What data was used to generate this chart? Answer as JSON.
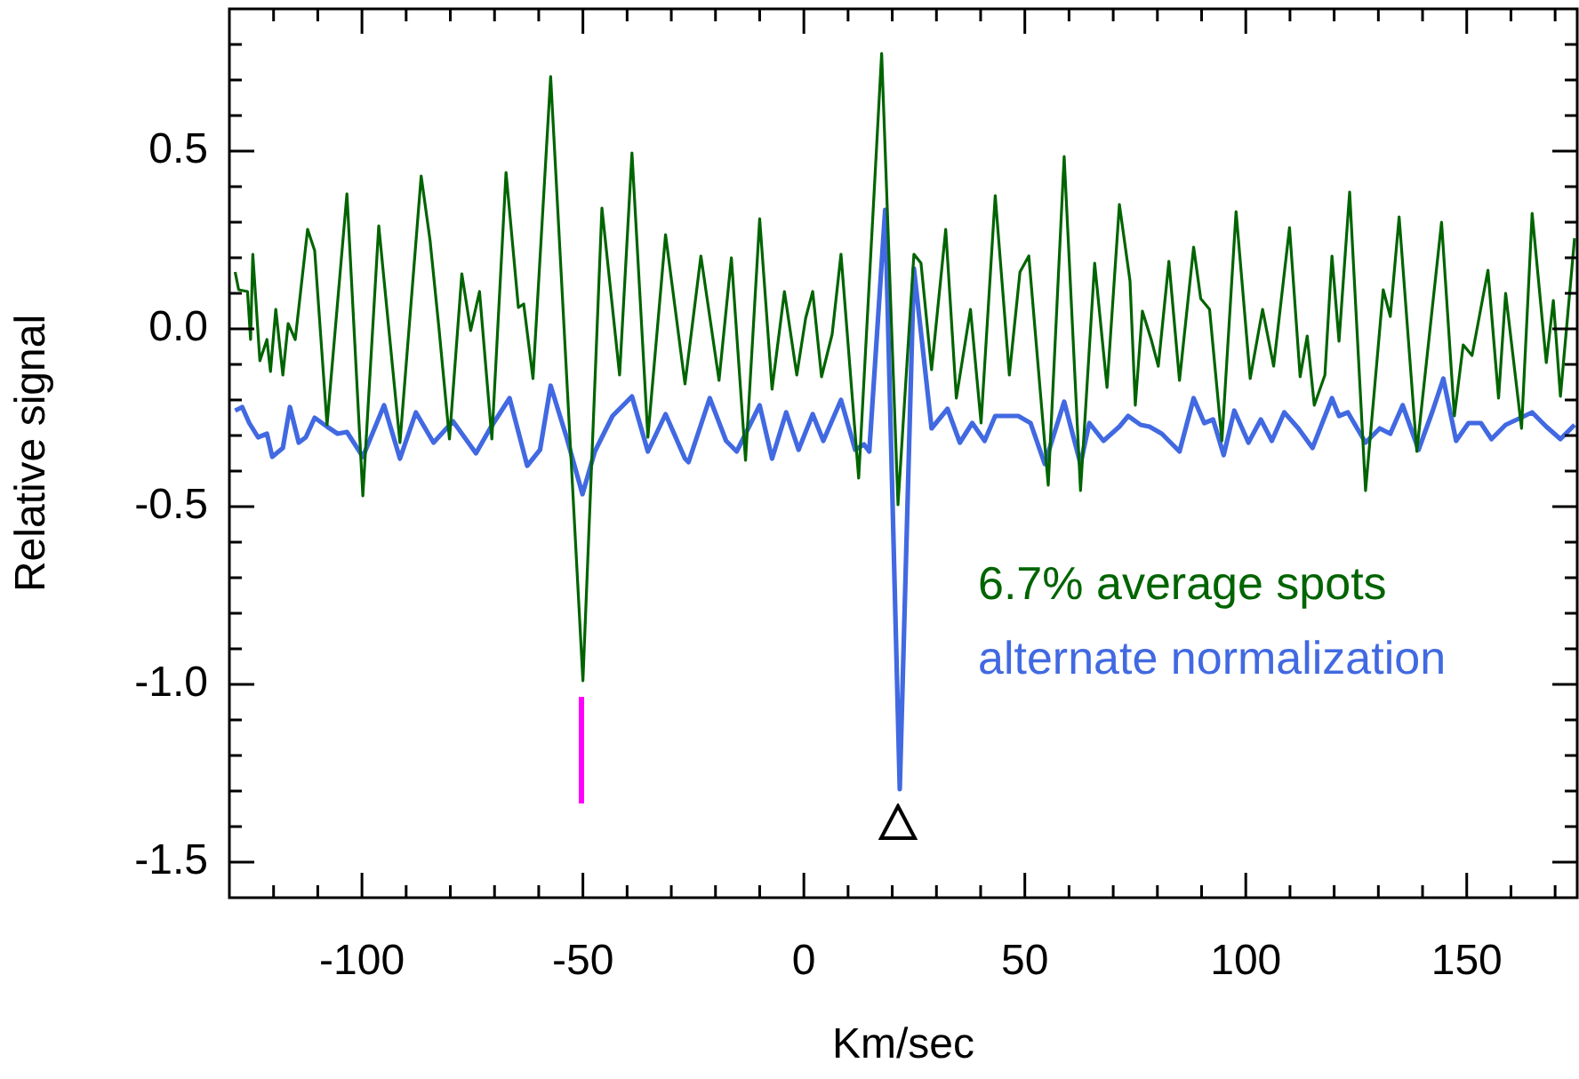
{
  "chart_data": {
    "type": "line",
    "xlabel": "Km/sec",
    "ylabel": "Relative signal",
    "xlim": [
      -130,
      175
    ],
    "ylim": [
      -1.6,
      0.9
    ],
    "xticks": [
      {
        "value": -120,
        "label": null
      },
      {
        "value": -110,
        "label": null
      },
      -100,
      {
        "value": -90,
        "label": null
      },
      {
        "value": -80,
        "label": null
      },
      {
        "value": -70,
        "label": null
      },
      {
        "value": -60,
        "label": null
      },
      -50,
      {
        "value": -40,
        "label": null
      },
      {
        "value": -30,
        "label": null
      },
      {
        "value": -20,
        "label": null
      },
      {
        "value": -10,
        "label": null
      },
      0,
      {
        "value": 10,
        "label": null
      },
      {
        "value": 20,
        "label": null
      },
      {
        "value": 30,
        "label": null
      },
      {
        "value": 40,
        "label": null
      },
      50,
      {
        "value": 60,
        "label": null
      },
      {
        "value": 70,
        "label": null
      },
      {
        "value": 80,
        "label": null
      },
      {
        "value": 90,
        "label": null
      },
      100,
      {
        "value": 110,
        "label": null
      },
      {
        "value": 120,
        "label": null
      },
      {
        "value": 130,
        "label": null
      },
      {
        "value": 140,
        "label": null
      },
      150,
      {
        "value": 160,
        "label": null
      },
      {
        "value": 170,
        "label": null
      }
    ],
    "yticks": [
      {
        "value": -1.5,
        "label": "-1.5"
      },
      {
        "value": -1.4,
        "label": null
      },
      {
        "value": -1.3,
        "label": null
      },
      {
        "value": -1.2,
        "label": null
      },
      {
        "value": -1.1,
        "label": null
      },
      {
        "value": -1.0,
        "label": "-1.0"
      },
      {
        "value": -0.9,
        "label": null
      },
      {
        "value": -0.8,
        "label": null
      },
      {
        "value": -0.7,
        "label": null
      },
      {
        "value": -0.6,
        "label": null
      },
      {
        "value": -0.5,
        "label": "-0.5"
      },
      {
        "value": -0.4,
        "label": null
      },
      {
        "value": -0.3,
        "label": null
      },
      {
        "value": -0.2,
        "label": null
      },
      {
        "value": -0.1,
        "label": null
      },
      {
        "value": 0,
        "label": "0.0"
      },
      {
        "value": 0.1,
        "label": null
      },
      {
        "value": 0.2,
        "label": null
      },
      {
        "value": 0.3,
        "label": null
      },
      {
        "value": 0.4,
        "label": null
      },
      {
        "value": 0.5,
        "label": "0.5"
      },
      {
        "value": 0.6,
        "label": null
      },
      {
        "value": 0.7,
        "label": null
      },
      {
        "value": 0.8,
        "label": null
      }
    ],
    "grid": false,
    "legend": false,
    "marker": "none",
    "line_style": "solid",
    "series": [
      {
        "name": "6.7% average spots",
        "color": "#006400",
        "x": [
          -128.7,
          -127.9,
          -125.9,
          -125.2,
          -124.7,
          -123.1,
          -121.5,
          -120.7,
          -119.5,
          -117.9,
          -116.7,
          -115.1,
          -112.3,
          -110.7,
          -107.9,
          -103.4,
          -99.8,
          -96.2,
          -91.4,
          -86.6,
          -84.6,
          -82.6,
          -80.2,
          -77.4,
          -75.4,
          -73.4,
          -70.6,
          -67.4,
          -64.6,
          -63.4,
          -61.3,
          -57.3,
          -50,
          -45.7,
          -41.7,
          -38.9,
          -35.3,
          -31.3,
          -26.9,
          -23.3,
          -19.2,
          -16.4,
          -13.2,
          -10.0,
          -7.2,
          -4.4,
          -1.6,
          0.4,
          2.0,
          4.0,
          6.4,
          8.4,
          12.4,
          17.6,
          21.3,
          24.9,
          26.5,
          28.9,
          32.1,
          34.5,
          37.7,
          40.1,
          43.3,
          46.5,
          48.9,
          50.9,
          55.3,
          58.9,
          62.6,
          65.8,
          68.6,
          71.4,
          73.8,
          75.0,
          76.6,
          78.6,
          80.2,
          82.6,
          85.0,
          88.2,
          89.8,
          91.8,
          94.6,
          97.8,
          101.0,
          103.8,
          106.3,
          109.9,
          112.3,
          113.9,
          115.5,
          117.9,
          119.5,
          121.1,
          123.5,
          127.1,
          131.1,
          132.7,
          134.7,
          138.7,
          144.3,
          147.2,
          149.2,
          151.2,
          154.8,
          157.2,
          158.8,
          162.4,
          164.8,
          168.0,
          169.6,
          171.2,
          174.4
        ],
        "values": [
          0.16,
          0.11,
          0.105,
          -0.03,
          0.21,
          -0.09,
          -0.03,
          -0.12,
          0.055,
          -0.13,
          0.015,
          -0.03,
          0.28,
          0.22,
          -0.27,
          0.38,
          -0.47,
          0.29,
          -0.32,
          0.43,
          0.25,
          0.005,
          -0.31,
          0.155,
          -0.005,
          0.105,
          -0.31,
          0.44,
          0.06,
          0.07,
          -0.14,
          0.71,
          -0.99,
          0.34,
          -0.13,
          0.495,
          -0.305,
          0.265,
          -0.155,
          0.205,
          -0.145,
          0.2,
          -0.37,
          0.31,
          -0.17,
          0.105,
          -0.13,
          0.03,
          0.105,
          -0.135,
          -0.015,
          0.21,
          -0.42,
          0.775,
          -0.495,
          0.21,
          0.185,
          -0.115,
          0.28,
          -0.195,
          0.055,
          -0.265,
          0.375,
          -0.13,
          0.16,
          0.205,
          -0.44,
          0.485,
          -0.455,
          0.185,
          -0.165,
          0.35,
          0.135,
          -0.215,
          0.05,
          -0.03,
          -0.105,
          0.19,
          -0.145,
          0.23,
          0.085,
          0.055,
          -0.315,
          0.33,
          -0.14,
          0.055,
          -0.105,
          0.285,
          -0.135,
          -0.02,
          -0.215,
          -0.13,
          0.205,
          -0.035,
          0.385,
          -0.455,
          0.11,
          0.035,
          0.315,
          -0.345,
          0.3,
          -0.245,
          -0.045,
          -0.075,
          0.165,
          -0.195,
          0.1,
          -0.28,
          0.325,
          -0.095,
          0.08,
          -0.19,
          0.255
        ]
      },
      {
        "name": "alternate normalization",
        "color": "#4169e1",
        "x": [
          -128.7,
          -127.1,
          -125.5,
          -123.5,
          -121.5,
          -120.3,
          -117.9,
          -116.3,
          -114.3,
          -112.7,
          -110.7,
          -107.9,
          -105.5,
          -103.4,
          -99.8,
          -95.0,
          -91.4,
          -87.8,
          -83.8,
          -79.4,
          -74.2,
          -71.0,
          -66.6,
          -62.6,
          -59.7,
          -57.3,
          -53.7,
          -50.1,
          -47.3,
          -43.3,
          -38.9,
          -35.3,
          -31.3,
          -26.9,
          -26.1,
          -21.3,
          -17.6,
          -15.2,
          -10.0,
          -7.2,
          -4.0,
          -1.2,
          2.0,
          4.4,
          8.4,
          11.6,
          13.6,
          14.8,
          18.4,
          21.7,
          24.9,
          28.9,
          32.5,
          35.3,
          38.1,
          40.9,
          43.3,
          48.5,
          51.3,
          54.5,
          58.9,
          62.6,
          64.6,
          67.8,
          71.4,
          73.4,
          76.2,
          78.2,
          81.0,
          85.0,
          88.2,
          90.6,
          92.6,
          95.0,
          97.4,
          100.6,
          103.4,
          105.9,
          108.7,
          111.9,
          115.1,
          119.5,
          121.1,
          123.1,
          127.1,
          130.3,
          132.7,
          135.5,
          139.1,
          142.3,
          144.7,
          147.6,
          150.4,
          153.2,
          155.6,
          158.8,
          164.8,
          168.0,
          171.2,
          174.4
        ],
        "values": [
          -0.23,
          -0.22,
          -0.265,
          -0.305,
          -0.295,
          -0.36,
          -0.335,
          -0.22,
          -0.32,
          -0.305,
          -0.25,
          -0.275,
          -0.295,
          -0.29,
          -0.36,
          -0.215,
          -0.365,
          -0.235,
          -0.32,
          -0.26,
          -0.35,
          -0.28,
          -0.195,
          -0.385,
          -0.34,
          -0.16,
          -0.305,
          -0.465,
          -0.345,
          -0.245,
          -0.19,
          -0.345,
          -0.24,
          -0.365,
          -0.375,
          -0.195,
          -0.315,
          -0.345,
          -0.215,
          -0.365,
          -0.235,
          -0.34,
          -0.24,
          -0.315,
          -0.2,
          -0.34,
          -0.325,
          -0.345,
          0.335,
          -1.295,
          0.17,
          -0.28,
          -0.225,
          -0.32,
          -0.265,
          -0.315,
          -0.245,
          -0.245,
          -0.265,
          -0.38,
          -0.205,
          -0.38,
          -0.265,
          -0.315,
          -0.275,
          -0.245,
          -0.27,
          -0.275,
          -0.295,
          -0.345,
          -0.195,
          -0.265,
          -0.255,
          -0.355,
          -0.23,
          -0.32,
          -0.255,
          -0.315,
          -0.235,
          -0.28,
          -0.335,
          -0.195,
          -0.245,
          -0.235,
          -0.32,
          -0.28,
          -0.295,
          -0.215,
          -0.34,
          -0.23,
          -0.14,
          -0.315,
          -0.265,
          -0.265,
          -0.31,
          -0.27,
          -0.235,
          -0.275,
          -0.31,
          -0.27
        ]
      }
    ]
  }
}
